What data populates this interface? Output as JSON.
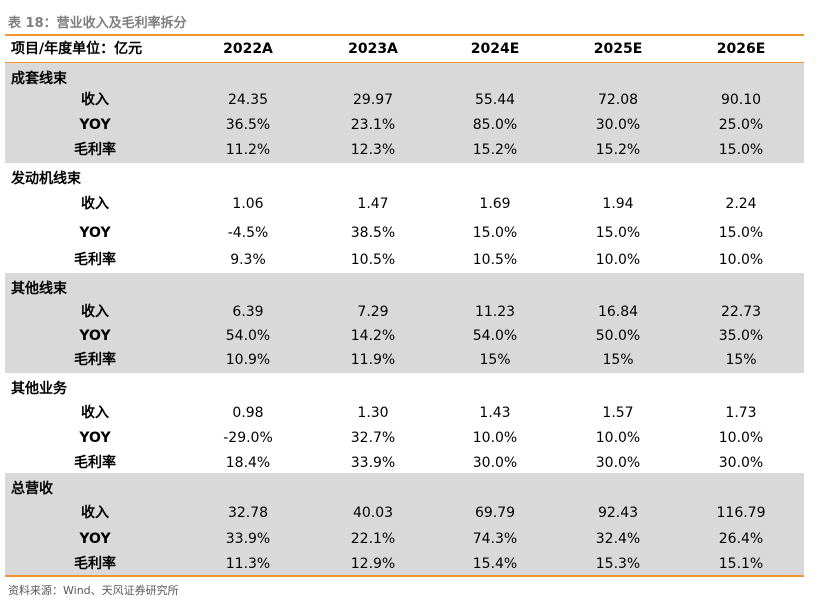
{
  "caption": "表 18：营业收入及毛利率拆分",
  "header": {
    "label": "项目/年度单位：亿元",
    "years": [
      "2022A",
      "2023A",
      "2024E",
      "2025E",
      "2026E"
    ]
  },
  "groups": [
    {
      "title": "成套线束",
      "rows": [
        {
          "name": "收入",
          "values": [
            "24.35",
            "29.97",
            "55.44",
            "72.08",
            "90.10"
          ]
        },
        {
          "name": "YOY",
          "values": [
            "36.5%",
            "23.1%",
            "85.0%",
            "30.0%",
            "25.0%"
          ]
        },
        {
          "name": "毛利率",
          "values": [
            "11.2%",
            "12.3%",
            "15.2%",
            "15.2%",
            "15.0%"
          ]
        }
      ]
    },
    {
      "title": "发动机线束",
      "rows": [
        {
          "name": "收入",
          "values": [
            "1.06",
            "1.47",
            "1.69",
            "1.94",
            "2.24"
          ]
        },
        {
          "name": "YOY",
          "values": [
            "-4.5%",
            "38.5%",
            "15.0%",
            "15.0%",
            "15.0%"
          ]
        },
        {
          "name": "毛利率",
          "values": [
            "9.3%",
            "10.5%",
            "10.5%",
            "10.0%",
            "10.0%"
          ]
        }
      ]
    },
    {
      "title": "其他线束",
      "rows": [
        {
          "name": "收入",
          "values": [
            "6.39",
            "7.29",
            "11.23",
            "16.84",
            "22.73"
          ]
        },
        {
          "name": "YOY",
          "values": [
            "54.0%",
            "14.2%",
            "54.0%",
            "50.0%",
            "35.0%"
          ]
        },
        {
          "name": "毛利率",
          "values": [
            "10.9%",
            "11.9%",
            "15%",
            "15%",
            "15%"
          ]
        }
      ]
    },
    {
      "title": "其他业务",
      "rows": [
        {
          "name": "收入",
          "values": [
            "0.98",
            "1.30",
            "1.43",
            "1.57",
            "1.73"
          ]
        },
        {
          "name": "YOY",
          "values": [
            "-29.0%",
            "32.7%",
            "10.0%",
            "10.0%",
            "10.0%"
          ]
        },
        {
          "name": "毛利率",
          "values": [
            "18.4%",
            "33.9%",
            "30.0%",
            "30.0%",
            "30.0%"
          ]
        }
      ]
    },
    {
      "title": "总营收",
      "rows": [
        {
          "name": "收入",
          "values": [
            "32.78",
            "40.03",
            "69.79",
            "92.43",
            "116.79"
          ]
        },
        {
          "name": "YOY",
          "values": [
            "33.9%",
            "22.1%",
            "74.3%",
            "32.4%",
            "26.4%"
          ]
        },
        {
          "name": "毛利率",
          "values": [
            "11.3%",
            "12.9%",
            "15.4%",
            "15.3%",
            "15.1%"
          ]
        }
      ]
    }
  ],
  "source": "资料来源：Wind、天风证券研究所",
  "colors": {
    "accent_rule": "#f0962f",
    "shade": "#d9d9d9",
    "caption_text": "#7f7f7f"
  }
}
